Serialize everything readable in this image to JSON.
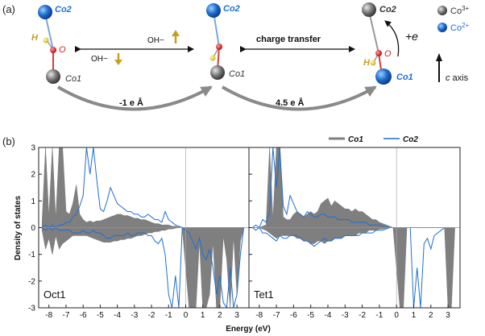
{
  "panel_a": {
    "label": "(a)",
    "atoms": {
      "co1": "Co1",
      "co2": "Co2",
      "h": "H",
      "o": "O"
    },
    "arrows": {
      "oh_up": "OH−",
      "oh_down": "OH−",
      "charge_transfer": "charge transfer",
      "curve1": "-1 e Å",
      "curve2": "4.5 e Å",
      "plus_e": "+e"
    },
    "legend": {
      "co3": "Co",
      "co3_sup": "3+",
      "co2": "Co",
      "co2_sup": "2+"
    },
    "axis_note": {
      "c": "c",
      "rest": " axis"
    },
    "colors": {
      "co2_blue": "#1f6fd1",
      "co3_grey": "#7a7a7a",
      "oxygen": "#e02020",
      "hydrogen": "#e8d83a",
      "oh_arrow": "#c8a020",
      "accent_blue": "#1f6fd1"
    }
  },
  "panel_b": {
    "label": "(b)",
    "ylabel": "Density of states",
    "xlabel": "Energy (eV)",
    "legend": [
      {
        "name": "Co1",
        "color": "#7f7f7f"
      },
      {
        "name": "Co2",
        "color": "#1f6fd1"
      }
    ]
  },
  "chart_data": [
    {
      "type": "area",
      "title": "Oct1",
      "xlabel": "Energy (eV)",
      "ylabel": "Density of states",
      "xlim": [
        -8.6,
        3.7
      ],
      "ylim": [
        -3,
        3
      ],
      "xticks": [
        -8,
        -7,
        -6,
        -5,
        -4,
        -3,
        -2,
        -1,
        0,
        1,
        2,
        3
      ],
      "yticks": [
        -3,
        -2,
        -1,
        0,
        1,
        2,
        3
      ],
      "series": [
        {
          "name": "Co1",
          "style": "filled",
          "color": "#7f7f7f",
          "x": [
            -8.4,
            -8.2,
            -8.0,
            -7.8,
            -7.6,
            -7.4,
            -7.2,
            -7.0,
            -6.8,
            -6.6,
            -6.4,
            -6.2,
            -6.0,
            -5.8,
            -5.6,
            -5.4,
            -5.2,
            -5.0,
            -4.8,
            -4.6,
            -4.4,
            -4.2,
            -4.0,
            -3.8,
            -3.6,
            -3.4,
            -3.2,
            -3.0,
            -2.8,
            -2.6,
            -2.4,
            -2.2,
            -2.0,
            -1.8,
            -1.6,
            -1.4,
            -1.2,
            -1.0,
            -0.8,
            -0.6,
            -0.4,
            -0.2,
            0.2,
            0.4,
            0.6,
            0.8,
            1.0,
            1.2,
            1.4,
            1.6,
            1.8,
            2.0,
            2.2,
            2.4,
            2.6,
            2.8,
            3.0,
            3.2,
            3.4
          ],
          "up": [
            0.2,
            3.0,
            0.4,
            3.0,
            0.3,
            3.0,
            3.0,
            0.6,
            0.5,
            0.9,
            1.6,
            0.5,
            0.3,
            0.2,
            0.25,
            0.2,
            0.25,
            0.25,
            0.3,
            0.35,
            0.4,
            0.45,
            0.5,
            0.5,
            0.45,
            0.45,
            0.4,
            0.35,
            0.35,
            0.3,
            0.3,
            0.25,
            0.2,
            0.15,
            0.15,
            0.1,
            0.1,
            0.1,
            0.05,
            0.05,
            0.02,
            0,
            0,
            0,
            0,
            0,
            0,
            0,
            0,
            0,
            0,
            0,
            0,
            0,
            0,
            0,
            0,
            0,
            0
          ],
          "down": [
            -0.1,
            -0.8,
            -0.4,
            -1.0,
            -0.3,
            -0.8,
            -0.6,
            -0.5,
            -0.4,
            -0.3,
            -0.3,
            -0.3,
            -0.3,
            -0.3,
            -0.35,
            -0.4,
            -0.45,
            -0.5,
            -0.55,
            -0.55,
            -0.55,
            -0.5,
            -0.5,
            -0.45,
            -0.45,
            -0.4,
            -0.4,
            -0.35,
            -0.3,
            -0.3,
            -0.25,
            -0.2,
            -0.2,
            -0.15,
            -0.15,
            -0.1,
            -0.1,
            -0.05,
            -0.05,
            -0.02,
            0,
            0,
            -3.0,
            -3.0,
            -3.0,
            -0.5,
            -3.0,
            -3.0,
            -2.5,
            -0.5,
            -3.0,
            -3.0,
            -0.3,
            -1.2,
            -3.0,
            -0.3,
            -2.5,
            -0.5,
            0
          ]
        },
        {
          "name": "Co2",
          "style": "line",
          "color": "#1f6fd1",
          "x": [
            -8.4,
            -8.2,
            -8.0,
            -7.8,
            -7.6,
            -7.4,
            -7.2,
            -7.0,
            -6.8,
            -6.6,
            -6.4,
            -6.2,
            -6.0,
            -5.8,
            -5.6,
            -5.4,
            -5.2,
            -5.0,
            -4.8,
            -4.6,
            -4.4,
            -4.2,
            -4.0,
            -3.8,
            -3.6,
            -3.4,
            -3.2,
            -3.0,
            -2.8,
            -2.6,
            -2.4,
            -2.2,
            -2.0,
            -1.8,
            -1.6,
            -1.4,
            -1.2,
            -1.0,
            -0.8,
            -0.6,
            -0.4,
            -0.2,
            0.2,
            0.4,
            0.6,
            0.8,
            1.0,
            1.2,
            1.4,
            1.6,
            1.8,
            2.0,
            2.2,
            2.4,
            2.6,
            2.8,
            3.0,
            3.2,
            3.4
          ],
          "up": [
            0,
            0.1,
            0,
            0.1,
            0,
            0.1,
            0.1,
            0.2,
            0.2,
            0.4,
            0.5,
            0.8,
            1.2,
            3.0,
            2.0,
            3.0,
            1.8,
            0.7,
            0.6,
            1.0,
            1.5,
            1.2,
            0.9,
            0.8,
            0.7,
            0.6,
            0.6,
            0.5,
            0.5,
            0.4,
            0.4,
            0.5,
            0.4,
            0.3,
            0.3,
            0.2,
            0.6,
            0.3,
            0.2,
            0.1,
            0.05,
            0,
            0,
            0,
            0,
            0,
            0,
            0,
            0,
            0,
            0,
            0,
            0,
            0,
            0,
            0,
            0,
            0,
            0
          ],
          "down": [
            0,
            -0.1,
            0,
            -0.1,
            0,
            -0.1,
            -0.1,
            -0.1,
            -0.1,
            -0.2,
            -0.2,
            -0.2,
            -0.1,
            -0.2,
            -0.2,
            -0.1,
            -0.2,
            -0.2,
            -0.3,
            -0.4,
            -0.4,
            -0.3,
            -0.3,
            -0.3,
            -0.3,
            -0.2,
            -0.3,
            -0.3,
            -0.2,
            -0.2,
            -0.2,
            -0.3,
            -0.3,
            -0.5,
            -0.6,
            -0.4,
            -1.0,
            -2.5,
            -3.0,
            -1.8,
            -3.0,
            0,
            -0.2,
            -0.5,
            -0.8,
            -0.4,
            -1.0,
            -1.2,
            -0.8,
            -1.5,
            -2.5,
            -1.8,
            -2.8,
            -3.0,
            -1.5,
            -3.0,
            -2.5,
            -1.0,
            0
          ]
        }
      ]
    },
    {
      "type": "area",
      "title": "Tet1",
      "xlabel": "Energy (eV)",
      "ylabel": "Density of states",
      "xlim": [
        -8.6,
        3.7
      ],
      "ylim": [
        -3,
        3
      ],
      "xticks": [
        -8,
        -7,
        -6,
        -5,
        -4,
        -3,
        -2,
        -1,
        0,
        1,
        2,
        3
      ],
      "yticks": [
        -3,
        -2,
        -1,
        0,
        1,
        2,
        3
      ],
      "series": [
        {
          "name": "Co1",
          "style": "filled",
          "color": "#7f7f7f",
          "x": [
            -8.4,
            -8.2,
            -8.0,
            -7.8,
            -7.6,
            -7.4,
            -7.2,
            -7.0,
            -6.8,
            -6.6,
            -6.4,
            -6.2,
            -6.0,
            -5.8,
            -5.6,
            -5.4,
            -5.2,
            -5.0,
            -4.8,
            -4.6,
            -4.4,
            -4.2,
            -4.0,
            -3.8,
            -3.6,
            -3.4,
            -3.2,
            -3.0,
            -2.8,
            -2.6,
            -2.4,
            -2.2,
            -2.0,
            -1.8,
            -1.6,
            -1.4,
            -1.2,
            -1.0,
            -0.8,
            -0.6,
            -0.4,
            -0.2,
            0.2,
            0.4,
            0.6,
            0.8,
            1.0,
            1.2,
            1.4,
            1.6,
            1.8,
            2.0,
            2.2,
            2.4,
            2.6,
            2.8,
            3.0,
            3.2,
            3.4
          ],
          "up": [
            0,
            0,
            0,
            0.05,
            0.1,
            3.0,
            0.3,
            3.0,
            3.0,
            0.4,
            0.3,
            0.3,
            0.5,
            0.6,
            0.5,
            0.4,
            0.5,
            0.6,
            0.5,
            0.6,
            0.9,
            1.0,
            1.1,
            0.8,
            1.0,
            0.9,
            0.8,
            0.7,
            0.7,
            0.6,
            0.7,
            0.6,
            0.6,
            0.5,
            0.4,
            0.3,
            0.3,
            0.2,
            0.15,
            0.1,
            0.05,
            0,
            0,
            0,
            0,
            0,
            0,
            0,
            0,
            0,
            0,
            0,
            0,
            0,
            0,
            0,
            0,
            0,
            0
          ],
          "down": [
            0,
            0,
            0,
            -0.05,
            -0.1,
            -0.2,
            -0.3,
            -0.4,
            -0.3,
            -0.3,
            -0.3,
            -0.3,
            -0.3,
            -0.4,
            -0.4,
            -0.5,
            -0.5,
            -0.6,
            -0.6,
            -0.5,
            -0.5,
            -0.6,
            -0.5,
            -0.5,
            -0.4,
            -0.4,
            -0.4,
            -0.3,
            -0.3,
            -0.3,
            -0.3,
            -0.2,
            -0.2,
            -0.2,
            -0.1,
            -0.1,
            -0.1,
            -0.05,
            -0.05,
            -0.02,
            0,
            0,
            -3.0,
            -3.0,
            0,
            0,
            0,
            0,
            0,
            0,
            0,
            0,
            0,
            0,
            0,
            0,
            -3.0,
            -3.0,
            0
          ]
        },
        {
          "name": "Co2",
          "style": "line",
          "color": "#1f6fd1",
          "x": [
            -8.4,
            -8.2,
            -8.0,
            -7.8,
            -7.6,
            -7.4,
            -7.2,
            -7.0,
            -6.8,
            -6.6,
            -6.4,
            -6.2,
            -6.0,
            -5.8,
            -5.6,
            -5.4,
            -5.2,
            -5.0,
            -4.8,
            -4.6,
            -4.4,
            -4.2,
            -4.0,
            -3.8,
            -3.6,
            -3.4,
            -3.2,
            -3.0,
            -2.8,
            -2.6,
            -2.4,
            -2.2,
            -2.0,
            -1.8,
            -1.6,
            -1.4,
            -1.2,
            -1.0,
            -0.8,
            -0.6,
            -0.4,
            -0.2,
            0.2,
            0.4,
            0.6,
            0.8,
            1.0,
            1.2,
            1.4,
            1.6,
            1.8,
            2.0,
            2.2,
            2.4,
            2.6,
            2.8,
            3.0,
            3.2,
            3.4
          ],
          "up": [
            0,
            0.1,
            0,
            0.3,
            0.2,
            0.6,
            3.0,
            1.5,
            3.0,
            0.8,
            0.5,
            1.2,
            0.9,
            0.6,
            0.5,
            0.4,
            0.6,
            0.5,
            0.4,
            0.4,
            0.5,
            0.5,
            0.4,
            0.4,
            0.4,
            0.3,
            0.3,
            0.3,
            0.3,
            0.2,
            0.2,
            0.2,
            0.2,
            0.2,
            0.1,
            0.1,
            0.1,
            0.1,
            0.05,
            0.02,
            0,
            0,
            0,
            0,
            0,
            0,
            0,
            0,
            0,
            0,
            0,
            0,
            0,
            0,
            0,
            0,
            0,
            0,
            0
          ],
          "down": [
            0,
            -0.1,
            0,
            -0.2,
            -0.2,
            -0.3,
            -0.4,
            -0.5,
            -0.3,
            -0.4,
            -0.4,
            -0.3,
            -0.3,
            -0.3,
            -0.4,
            -0.5,
            -0.5,
            -0.6,
            -0.7,
            -0.6,
            -0.5,
            -0.4,
            -0.5,
            -0.5,
            -0.4,
            -0.4,
            -0.4,
            -0.3,
            -0.3,
            -0.3,
            -0.3,
            -0.3,
            -0.2,
            -0.2,
            -0.2,
            -0.2,
            -0.1,
            -0.1,
            -0.1,
            -0.05,
            0,
            0,
            0,
            0,
            0,
            0,
            -3.0,
            -1.5,
            -3.0,
            -0.6,
            -0.4,
            -0.8,
            -0.3,
            -0.2,
            -0.1,
            0,
            0,
            0,
            0
          ]
        }
      ]
    }
  ]
}
